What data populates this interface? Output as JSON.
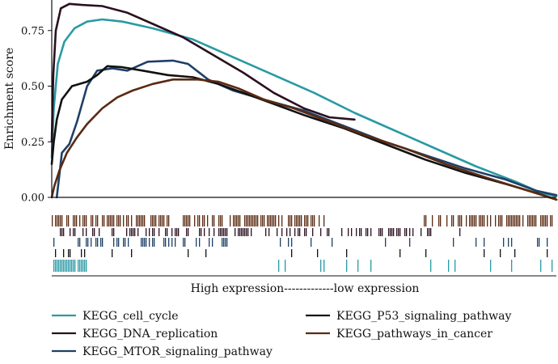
{
  "chart_data": {
    "type": "line",
    "title": "",
    "xlabel": "High expression-------------low expression",
    "ylabel": "Enrichment score",
    "ylim": [
      0,
      0.88
    ],
    "yticks": [
      0.0,
      0.25,
      0.5,
      0.75
    ],
    "ytick_labels": [
      "0.00",
      "0.25",
      "0.50",
      "0.75"
    ],
    "xlim": [
      0,
      1
    ],
    "grid": false,
    "legend_position": "bottom",
    "series": [
      {
        "name": "KEGG_cell_cycle",
        "color": "#2a9aa4",
        "points": [
          [
            0,
            0.18
          ],
          [
            0.004,
            0.4
          ],
          [
            0.012,
            0.6
          ],
          [
            0.025,
            0.7
          ],
          [
            0.045,
            0.76
          ],
          [
            0.07,
            0.79
          ],
          [
            0.1,
            0.8
          ],
          [
            0.14,
            0.79
          ],
          [
            0.2,
            0.76
          ],
          [
            0.28,
            0.71
          ],
          [
            0.36,
            0.63
          ],
          [
            0.44,
            0.55
          ],
          [
            0.52,
            0.47
          ],
          [
            0.6,
            0.38
          ],
          [
            0.68,
            0.3
          ],
          [
            0.76,
            0.22
          ],
          [
            0.84,
            0.14
          ],
          [
            0.92,
            0.07
          ],
          [
            0.97,
            0.02
          ],
          [
            1.0,
            0.005
          ]
        ]
      },
      {
        "name": "KEGG_DNA_replication",
        "color": "#2a1020",
        "points": [
          [
            0,
            0.25
          ],
          [
            0.003,
            0.55
          ],
          [
            0.008,
            0.75
          ],
          [
            0.018,
            0.85
          ],
          [
            0.035,
            0.87
          ],
          [
            0.06,
            0.865
          ],
          [
            0.1,
            0.86
          ],
          [
            0.15,
            0.83
          ],
          [
            0.2,
            0.78
          ],
          [
            0.26,
            0.72
          ],
          [
            0.32,
            0.64
          ],
          [
            0.38,
            0.56
          ],
          [
            0.44,
            0.47
          ],
          [
            0.5,
            0.4
          ],
          [
            0.55,
            0.36
          ],
          [
            0.6,
            0.35
          ]
        ]
      },
      {
        "name": "KEGG_MTOR_signaling_pathway",
        "color": "#1f4066",
        "points": [
          [
            0.01,
            0.0
          ],
          [
            0.015,
            0.1
          ],
          [
            0.02,
            0.2
          ],
          [
            0.035,
            0.24
          ],
          [
            0.05,
            0.34
          ],
          [
            0.07,
            0.5
          ],
          [
            0.09,
            0.57
          ],
          [
            0.12,
            0.58
          ],
          [
            0.15,
            0.57
          ],
          [
            0.19,
            0.61
          ],
          [
            0.24,
            0.615
          ],
          [
            0.27,
            0.6
          ],
          [
            0.31,
            0.53
          ],
          [
            0.36,
            0.48
          ],
          [
            0.42,
            0.44
          ],
          [
            0.5,
            0.39
          ],
          [
            0.58,
            0.32
          ],
          [
            0.66,
            0.25
          ],
          [
            0.74,
            0.19
          ],
          [
            0.82,
            0.13
          ],
          [
            0.9,
            0.08
          ],
          [
            0.96,
            0.03
          ],
          [
            1.0,
            0.01
          ]
        ]
      },
      {
        "name": "KEGG_P53_signaling_pathway",
        "color": "#111111",
        "points": [
          [
            0,
            0.15
          ],
          [
            0.004,
            0.25
          ],
          [
            0.01,
            0.35
          ],
          [
            0.02,
            0.44
          ],
          [
            0.04,
            0.5
          ],
          [
            0.07,
            0.52
          ],
          [
            0.09,
            0.55
          ],
          [
            0.11,
            0.59
          ],
          [
            0.14,
            0.585
          ],
          [
            0.18,
            0.57
          ],
          [
            0.23,
            0.55
          ],
          [
            0.28,
            0.54
          ],
          [
            0.33,
            0.51
          ],
          [
            0.38,
            0.47
          ],
          [
            0.44,
            0.42
          ],
          [
            0.5,
            0.37
          ],
          [
            0.58,
            0.31
          ],
          [
            0.66,
            0.24
          ],
          [
            0.74,
            0.17
          ],
          [
            0.82,
            0.11
          ],
          [
            0.9,
            0.06
          ],
          [
            0.96,
            0.02
          ],
          [
            1.0,
            -0.01
          ]
        ]
      },
      {
        "name": "KEGG_pathways_in_cancer",
        "color": "#5a2a12",
        "points": [
          [
            0,
            0.0
          ],
          [
            0.005,
            0.05
          ],
          [
            0.015,
            0.12
          ],
          [
            0.03,
            0.2
          ],
          [
            0.05,
            0.27
          ],
          [
            0.07,
            0.33
          ],
          [
            0.1,
            0.4
          ],
          [
            0.13,
            0.45
          ],
          [
            0.16,
            0.48
          ],
          [
            0.2,
            0.51
          ],
          [
            0.24,
            0.53
          ],
          [
            0.29,
            0.53
          ],
          [
            0.33,
            0.52
          ],
          [
            0.37,
            0.49
          ],
          [
            0.42,
            0.44
          ],
          [
            0.48,
            0.4
          ],
          [
            0.55,
            0.34
          ],
          [
            0.62,
            0.28
          ],
          [
            0.7,
            0.22
          ],
          [
            0.78,
            0.15
          ],
          [
            0.86,
            0.09
          ],
          [
            0.93,
            0.04
          ],
          [
            1.0,
            -0.01
          ]
        ]
      }
    ]
  }
}
